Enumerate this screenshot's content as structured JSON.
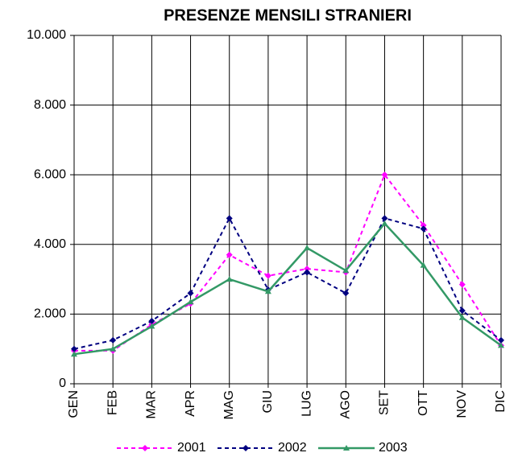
{
  "chart_data": {
    "type": "line",
    "title": "PRESENZE MENSILI STRANIERI",
    "categories": [
      "GEN",
      "FEB",
      "MAR",
      "APR",
      "MAG",
      "GIU",
      "LUG",
      "AGO",
      "SET",
      "OTT",
      "NOV",
      "DIC"
    ],
    "series": [
      {
        "name": "2001",
        "color": "#ff00ff",
        "dashed": true,
        "marker": "diamond",
        "values": [
          950,
          950,
          1700,
          2300,
          3700,
          3100,
          3300,
          3200,
          6000,
          4550,
          2850,
          1100
        ]
      },
      {
        "name": "2002",
        "color": "#000080",
        "dashed": true,
        "marker": "diamond",
        "values": [
          1000,
          1250,
          1800,
          2600,
          4750,
          2700,
          3200,
          2600,
          4750,
          4450,
          2100,
          1250
        ]
      },
      {
        "name": "2003",
        "color": "#339966",
        "dashed": false,
        "marker": "triangle",
        "values": [
          850,
          1000,
          1650,
          2350,
          3000,
          2650,
          3900,
          3250,
          4600,
          3400,
          1900,
          1100
        ]
      }
    ],
    "ylim": [
      0,
      10000
    ],
    "yticks": [
      0,
      {
        "value": 2000,
        "label": "2.000"
      },
      {
        "value": 4000,
        "label": "4.000"
      },
      {
        "value": 6000,
        "label": "6.000"
      },
      {
        "value": 8000,
        "label": "8.000"
      },
      {
        "value": 10000,
        "label": "10.000"
      }
    ],
    "grid": true,
    "legend": "bottom"
  }
}
